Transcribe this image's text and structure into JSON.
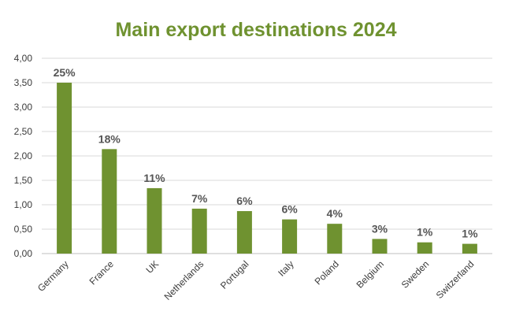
{
  "chart_data": {
    "type": "bar",
    "title": "Main export destinations 2024",
    "xlabel": "",
    "ylabel": "",
    "categories": [
      "Germany",
      "France",
      "UK",
      "Netherlands",
      "Portugal",
      "Italy",
      "Poland",
      "Belgium",
      "Sweden",
      "Switzerland"
    ],
    "values": [
      3.5,
      2.14,
      1.34,
      0.92,
      0.87,
      0.7,
      0.61,
      0.3,
      0.23,
      0.2
    ],
    "data_labels": [
      "25%",
      "18%",
      "11%",
      "7%",
      "6%",
      "6%",
      "4%",
      "3%",
      "1%",
      "1%"
    ],
    "ylim": [
      0,
      4
    ],
    "yticks": [
      "0,00",
      "0,50",
      "1,00",
      "1,50",
      "2,00",
      "2,50",
      "3,00",
      "3,50",
      "4,00"
    ],
    "grid": true,
    "bar_color": "#6f9230",
    "title_color": "#6f9230"
  }
}
